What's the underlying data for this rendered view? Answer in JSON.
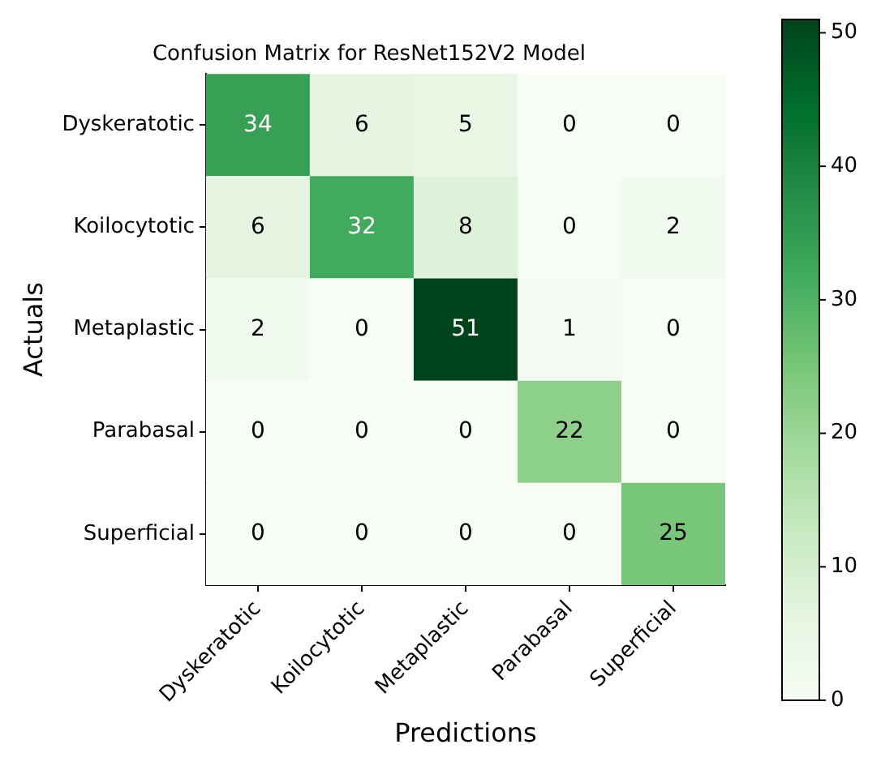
{
  "chart_data": {
    "type": "heatmap",
    "title": "Confusion Matrix for ResNet152V2 Model",
    "xlabel": "Predictions",
    "ylabel": "Actuals",
    "categories": [
      "Dyskeratotic",
      "Koilocytotic",
      "Metaplastic",
      "Parabasal",
      "Superficial"
    ],
    "y_categories": [
      "Dyskeratotic",
      "Koilocytotic",
      "Metaplastic",
      "Parabasal",
      "Superficial"
    ],
    "cells": [
      [
        34,
        6,
        5,
        0,
        0
      ],
      [
        6,
        32,
        8,
        0,
        2
      ],
      [
        2,
        0,
        51,
        1,
        0
      ],
      [
        0,
        0,
        0,
        22,
        0
      ],
      [
        0,
        0,
        0,
        0,
        25
      ]
    ],
    "data_labels": true,
    "clim": [
      0,
      51
    ],
    "cticks": [
      0,
      10,
      20,
      30,
      40,
      50
    ],
    "grid": false
  }
}
